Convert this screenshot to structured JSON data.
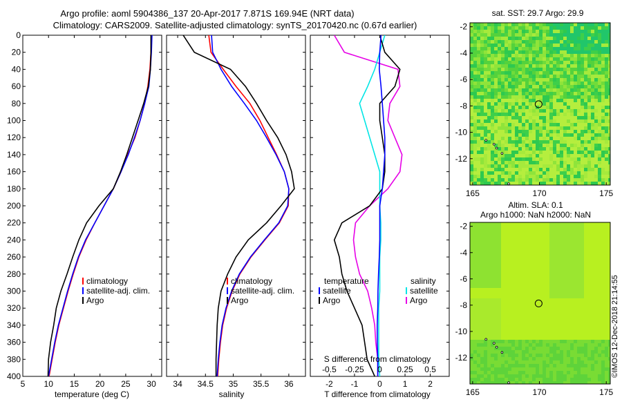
{
  "titles": {
    "line1": "Argo profile: aoml 5904386_137 20-Apr-2017 7.871S 169.94E (NRT data)",
    "line2": "Climatology: CARS2009. Satellite-adjusted climatology: synTS_20170420.nc (0.67d earlier)"
  },
  "colors": {
    "climatology": "#ff0000",
    "satellite": "#0000ff",
    "argo": "#000000",
    "s_satellite": "#00e5e5",
    "s_clim": "#e600e6"
  },
  "depth_axis": {
    "ticks": [
      "0",
      "20",
      "40",
      "60",
      "80",
      "100",
      "120",
      "140",
      "160",
      "180",
      "200",
      "220",
      "240",
      "260",
      "280",
      "300",
      "320",
      "340",
      "360",
      "380",
      "400"
    ],
    "range": [
      0,
      400
    ]
  },
  "chart_data": [
    {
      "type": "line",
      "name": "temperature",
      "xlabel": "temperature (deg C)",
      "xlim": [
        5,
        32
      ],
      "xticks": [
        "5",
        "10",
        "15",
        "20",
        "25",
        "30"
      ],
      "ylabel": "depth",
      "ylim": [
        0,
        400
      ],
      "legend": [
        "climatology",
        "satellite-adj. clim.",
        "Argo"
      ],
      "series": [
        {
          "name": "climatology",
          "depth": [
            0,
            20,
            40,
            60,
            80,
            100,
            120,
            140,
            160,
            180,
            200,
            220,
            240,
            260,
            280,
            300,
            320,
            340,
            360,
            380,
            400
          ],
          "values": [
            30.0,
            29.9,
            29.7,
            29.3,
            28.7,
            27.8,
            26.8,
            25.4,
            24.1,
            22.6,
            20.8,
            19.0,
            17.3,
            15.9,
            14.8,
            13.8,
            12.9,
            12.0,
            11.3,
            10.7,
            10.1
          ]
        },
        {
          "name": "satellite-adj. clim.",
          "depth": [
            0,
            20,
            40,
            60,
            80,
            100,
            120,
            140,
            160,
            180,
            200,
            220,
            240,
            260,
            280,
            300,
            320,
            340,
            360,
            380,
            400
          ],
          "values": [
            30.1,
            30.0,
            29.8,
            29.5,
            28.7,
            27.8,
            26.7,
            25.5,
            24.1,
            22.6,
            20.8,
            19.0,
            17.2,
            15.8,
            14.7,
            13.7,
            12.8,
            11.9,
            11.2,
            10.6,
            10.0
          ]
        },
        {
          "name": "Argo",
          "depth": [
            0,
            20,
            40,
            60,
            80,
            100,
            120,
            140,
            160,
            180,
            200,
            220,
            240,
            260,
            280,
            300,
            320,
            340,
            360,
            380,
            400
          ],
          "values": [
            29.9,
            29.9,
            29.8,
            29.4,
            28.5,
            27.4,
            26.3,
            25.2,
            24.0,
            22.6,
            19.8,
            17.4,
            15.9,
            14.7,
            13.6,
            12.4,
            11.5,
            11.0,
            10.4,
            10.0,
            9.9
          ]
        }
      ]
    },
    {
      "type": "line",
      "name": "salinity",
      "xlabel": "salinity",
      "xlim": [
        33.8,
        36.3
      ],
      "xticks": [
        "34",
        "34.5",
        "35",
        "35.5",
        "36"
      ],
      "ylabel": "depth",
      "ylim": [
        0,
        400
      ],
      "legend": [
        "climatology",
        "satellite-adj. clim.",
        "Argo"
      ],
      "series": [
        {
          "name": "climatology",
          "depth": [
            0,
            20,
            40,
            60,
            80,
            100,
            120,
            140,
            160,
            180,
            200,
            220,
            240,
            260,
            280,
            300,
            320,
            340,
            360,
            380,
            400
          ],
          "values": [
            34.56,
            34.6,
            34.82,
            35.05,
            35.3,
            35.48,
            35.63,
            35.78,
            35.92,
            36.0,
            35.99,
            35.83,
            35.57,
            35.32,
            35.12,
            34.98,
            34.88,
            34.81,
            34.77,
            34.74,
            34.72
          ]
        },
        {
          "name": "satellite-adj. clim.",
          "depth": [
            0,
            20,
            40,
            60,
            80,
            100,
            120,
            140,
            160,
            180,
            200,
            220,
            240,
            260,
            280,
            300,
            320,
            340,
            360,
            380,
            400
          ],
          "values": [
            34.61,
            34.63,
            34.78,
            34.97,
            35.2,
            35.42,
            35.6,
            35.77,
            35.92,
            36.0,
            35.98,
            35.82,
            35.56,
            35.31,
            35.11,
            34.97,
            34.87,
            34.8,
            34.76,
            34.73,
            34.71
          ]
        },
        {
          "name": "Argo",
          "depth": [
            0,
            20,
            40,
            60,
            80,
            100,
            120,
            140,
            160,
            180,
            200,
            220,
            240,
            260,
            280,
            300,
            320,
            340,
            360,
            380,
            400
          ],
          "values": [
            34.1,
            34.3,
            34.95,
            35.22,
            35.42,
            35.6,
            35.8,
            35.95,
            36.05,
            36.1,
            35.86,
            35.6,
            35.27,
            35.05,
            34.9,
            34.78,
            34.73,
            34.71,
            34.7,
            34.69,
            34.69
          ]
        }
      ]
    },
    {
      "type": "line",
      "name": "difference from climatology",
      "xlabel": "T difference from climatology",
      "xlim": [
        -2.75,
        2.75
      ],
      "xticks": [
        "-2",
        "-1",
        "0",
        "1",
        "2"
      ],
      "top_xlabel": "S difference from climatology",
      "top_xticks": [
        "-0.5",
        "-0.25",
        "0",
        "0.25",
        "0.5"
      ],
      "ylim": [
        0,
        400
      ],
      "legend": {
        "temperature": [
          "satellite",
          "Argo"
        ],
        "salinity": [
          "satellite",
          "Argo"
        ],
        "headers": [
          "temperature",
          "salinity"
        ]
      },
      "series": [
        {
          "name": "temperature satellite",
          "depth": [
            0,
            20,
            40,
            60,
            80,
            100,
            120,
            140,
            160,
            180,
            200,
            220,
            240,
            260,
            280,
            300,
            320,
            340,
            360,
            380,
            400
          ],
          "values": [
            0.05,
            0.0,
            -0.02,
            0.05,
            0.1,
            0.15,
            0.2,
            0.2,
            0.15,
            0.1,
            0.0,
            0.0,
            0.0,
            -0.02,
            -0.05,
            -0.07,
            -0.08,
            -0.1,
            -0.1,
            -0.08,
            -0.08
          ]
        },
        {
          "name": "temperature Argo",
          "depth": [
            0,
            20,
            40,
            60,
            80,
            100,
            120,
            140,
            160,
            180,
            200,
            220,
            240,
            260,
            280,
            300,
            320,
            340,
            360,
            380,
            400
          ],
          "values": [
            0.0,
            0.2,
            0.8,
            0.6,
            0.0,
            0.0,
            0.1,
            0.2,
            0.2,
            0.1,
            -0.4,
            -1.5,
            -1.8,
            -1.6,
            -1.5,
            -1.3,
            -1.0,
            -0.7,
            -0.6,
            -0.5,
            -0.2
          ]
        },
        {
          "name": "salinity satellite",
          "depth": [
            0,
            20,
            40,
            60,
            80,
            100,
            120,
            140,
            160,
            180,
            200,
            220,
            240,
            260,
            280,
            300,
            320,
            340,
            360,
            380,
            400
          ],
          "values": [
            0.05,
            0.0,
            -0.05,
            -0.12,
            -0.2,
            -0.15,
            -0.1,
            -0.05,
            0.0,
            0.0,
            0.0,
            0.01,
            0.01,
            0.0,
            0.0,
            0.0,
            -0.01,
            -0.01,
            -0.01,
            -0.01,
            0.0
          ]
        },
        {
          "name": "salinity Argo",
          "depth": [
            0,
            20,
            40,
            60,
            80,
            100,
            120,
            140,
            160,
            180,
            200,
            220,
            240,
            260,
            280,
            300,
            320,
            340,
            360,
            380,
            400
          ],
          "values": [
            -0.45,
            -0.35,
            0.18,
            0.2,
            0.1,
            0.08,
            0.15,
            0.22,
            0.2,
            0.08,
            -0.1,
            -0.24,
            -0.26,
            -0.24,
            -0.2,
            -0.12,
            -0.08,
            -0.05,
            -0.04,
            -0.02,
            -0.02
          ]
        }
      ]
    }
  ],
  "map1": {
    "title": "sat. SST: 29.7 Argo: 29.9",
    "xticks": [
      "165",
      "170",
      "175"
    ],
    "yticks": [
      "-2",
      "-4",
      "-6",
      "-8",
      "-10",
      "-12"
    ],
    "xlim": [
      164.8,
      175.3
    ],
    "ylim": [
      -14,
      -1.7
    ],
    "argo_lon": 169.94,
    "argo_lat": -7.871
  },
  "map2": {
    "title1": "Altim. SLA: 0.1",
    "title2": "Argo h1000: NaN h2000: NaN",
    "xticks": [
      "165",
      "170",
      "175"
    ],
    "yticks": [
      "-2",
      "-4",
      "-6",
      "-8",
      "-10",
      "-12"
    ],
    "xlim": [
      164.8,
      175.3
    ],
    "ylim": [
      -14,
      -1.7
    ],
    "argo_lon": 169.94,
    "argo_lat": -7.871
  },
  "watermark": "©IMOS 12-Dec-2018 21:14:55"
}
